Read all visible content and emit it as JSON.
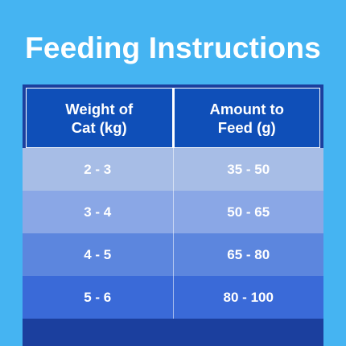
{
  "title": "Feeding Instructions",
  "table": {
    "headers": [
      "Weight of\nCat (kg)",
      "Amount to\nFeed (g)"
    ],
    "rows": [
      [
        "2 - 3",
        "35 - 50"
      ],
      [
        "3 - 4",
        "50 - 65"
      ],
      [
        "4 - 5",
        "65 - 80"
      ],
      [
        "5 - 6",
        "80 - 100"
      ]
    ]
  },
  "colors": {
    "background": "#45b4f2",
    "header": "#0f4fb8",
    "frame": "#1b3f9e",
    "row_shades": [
      "#a7bde6",
      "#8aa7e6",
      "#5c86de",
      "#3a6ad8"
    ]
  }
}
